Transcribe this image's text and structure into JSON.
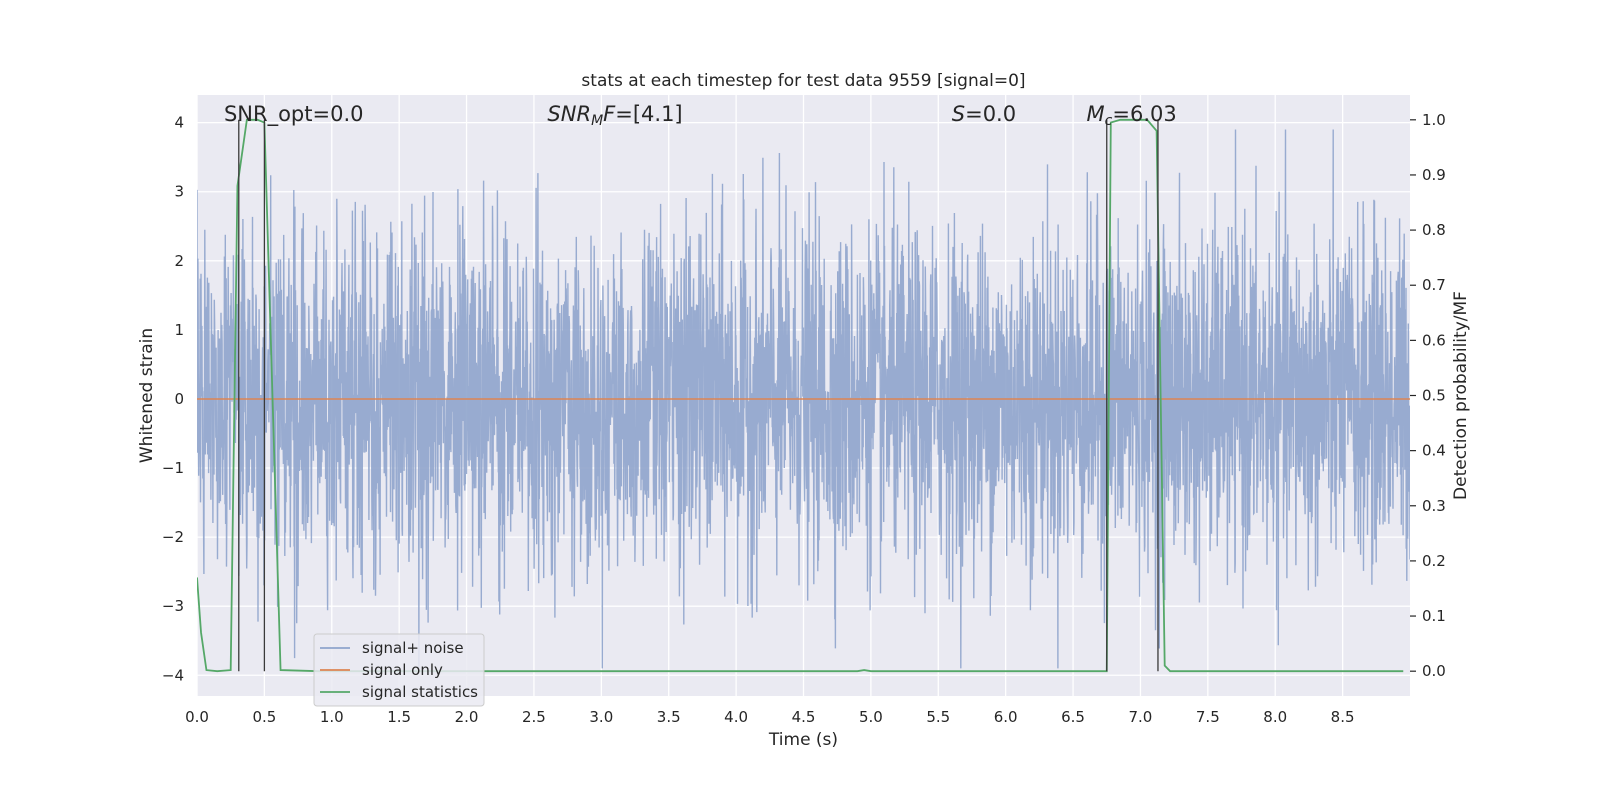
{
  "chart_data": {
    "type": "line",
    "title": "stats at each timestep for test data 9559 [signal=0]",
    "xlabel": "Time (s)",
    "ylabel": "Whitened strain",
    "ylabel_right": "Detection probability/MF",
    "xlim": [
      0,
      9.0
    ],
    "ylim": [
      -4.3,
      4.4
    ],
    "ylim_right": [
      -0.045,
      1.045
    ],
    "x_ticks": [
      0.0,
      0.5,
      1.0,
      1.5,
      2.0,
      2.5,
      3.0,
      3.5,
      4.0,
      4.5,
      5.0,
      5.5,
      6.0,
      6.5,
      7.0,
      7.5,
      8.0,
      8.5
    ],
    "x_tick_labels": [
      "0.0",
      "0.5",
      "1.0",
      "1.5",
      "2.0",
      "2.5",
      "3.0",
      "3.5",
      "4.0",
      "4.5",
      "5.0",
      "5.5",
      "6.0",
      "6.5",
      "7.0",
      "7.5",
      "8.0",
      "8.5"
    ],
    "y_ticks": [
      4,
      3,
      2,
      1,
      0,
      -1,
      -2,
      -3,
      -4
    ],
    "y_tick_labels": [
      "4",
      "3",
      "2",
      "1",
      "0",
      "−1",
      "−2",
      "−3",
      "−4"
    ],
    "y_ticks_right": [
      1.0,
      0.9,
      0.8,
      0.7,
      0.6,
      0.5,
      0.4,
      0.3,
      0.2,
      0.1,
      0.0
    ],
    "y_tick_labels_right": [
      "1.0",
      "0.9",
      "0.8",
      "0.7",
      "0.6",
      "0.5",
      "0.4",
      "0.3",
      "0.2",
      "0.1",
      "0.0"
    ],
    "grid": true,
    "legend_position": "lower-left",
    "annotations": [
      {
        "text": "SNR_opt=0.0",
        "x": 0.2
      },
      {
        "text": "SNR_MF=[4.1]",
        "x": 2.6
      },
      {
        "text": "S=0.0",
        "x": 5.6
      },
      {
        "text": "M_c=6.03",
        "x": 6.6
      }
    ],
    "vertical_lines_x": [
      0.31,
      0.5,
      6.75,
      7.13
    ],
    "series": [
      {
        "name": "signal+ noise",
        "color": "#8fa4cc",
        "noise_std": 1.2,
        "noise_max_abs": 3.9,
        "x_range": [
          0,
          9.0
        ]
      },
      {
        "name": "signal only",
        "color": "#dd8452",
        "x": [
          0,
          9.0
        ],
        "y": [
          0,
          0
        ]
      },
      {
        "name": "signal statistics",
        "color": "#55a868",
        "axis": "right",
        "x": [
          0.0,
          0.03,
          0.07,
          0.15,
          0.25,
          0.3,
          0.37,
          0.45,
          0.5,
          0.62,
          0.9,
          2.0,
          3.0,
          4.0,
          4.9,
          4.95,
          5.0,
          6.0,
          6.75,
          6.78,
          6.85,
          7.05,
          7.12,
          7.18,
          7.22,
          8.0,
          8.95
        ],
        "y": [
          0.17,
          0.07,
          0.002,
          0.0,
          0.002,
          0.88,
          1.0,
          1.0,
          0.995,
          0.002,
          0.0,
          0.0,
          0.0,
          0.0,
          0.0,
          0.002,
          0.0,
          0.0,
          0.0,
          0.995,
          1.0,
          1.0,
          0.98,
          0.01,
          0.0,
          0.0,
          0.0
        ]
      }
    ]
  }
}
